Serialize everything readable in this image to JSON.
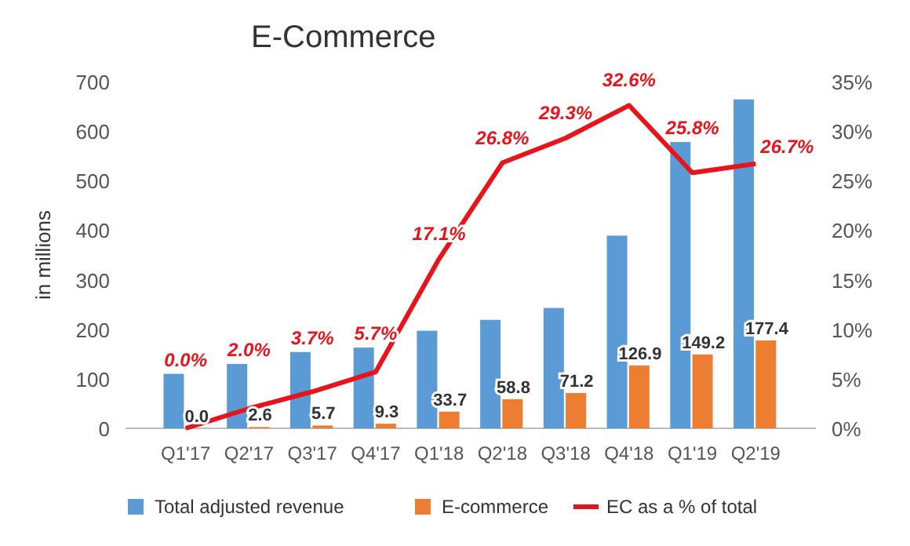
{
  "chart_data": {
    "type": "bar",
    "title": "E-Commerce",
    "ylabel": "in millions",
    "categories": [
      "Q1'17",
      "Q2'17",
      "Q3'17",
      "Q4'17",
      "Q1'18",
      "Q2'18",
      "Q3'18",
      "Q4'18",
      "Q1'19",
      "Q2'19"
    ],
    "series": [
      {
        "name": "Total adjusted revenue",
        "color": "#5b9bd5",
        "values": [
          110,
          130,
          154,
          163,
          197,
          219,
          243,
          389,
          578,
          664
        ]
      },
      {
        "name": "E-commerce",
        "color": "#ed7d31",
        "values": [
          0,
          2.6,
          5.7,
          9.3,
          33.7,
          58.8,
          71.2,
          126.9,
          149.2,
          177.4
        ],
        "value_labels": [
          "0.0",
          "2.6",
          "5.7",
          "9.3",
          "33.7",
          "58.8",
          "71.2",
          "126.9",
          "149.2",
          "177.4"
        ]
      },
      {
        "name": "EC as a % of total",
        "type": "line",
        "axis": "y2",
        "color": "#e8141b",
        "values": [
          0,
          2.0,
          3.7,
          5.7,
          17.1,
          26.8,
          29.3,
          32.6,
          25.8,
          26.7
        ],
        "value_labels": [
          "0.0%",
          "2.0%",
          "3.7%",
          "5.7%",
          "17.1%",
          "26.8%",
          "29.3%",
          "32.6%",
          "25.8%",
          "26.7%"
        ]
      }
    ],
    "ylim": [
      0,
      700
    ],
    "yticks": [
      0,
      100,
      200,
      300,
      400,
      500,
      600,
      700
    ],
    "y2lim": [
      0,
      35
    ],
    "y2ticks": [
      {
        "value": 0,
        "label": "0%"
      },
      {
        "value": 5,
        "label": "5%"
      },
      {
        "value": 10,
        "label": "10%"
      },
      {
        "value": 15,
        "label": "15%"
      },
      {
        "value": 20,
        "label": "20%"
      },
      {
        "value": 25,
        "label": "25%"
      },
      {
        "value": 30,
        "label": "30%"
      },
      {
        "value": 35,
        "label": "35%"
      }
    ],
    "grid": false,
    "legend": "bottom",
    "line_style": "solid",
    "marker": "none"
  }
}
